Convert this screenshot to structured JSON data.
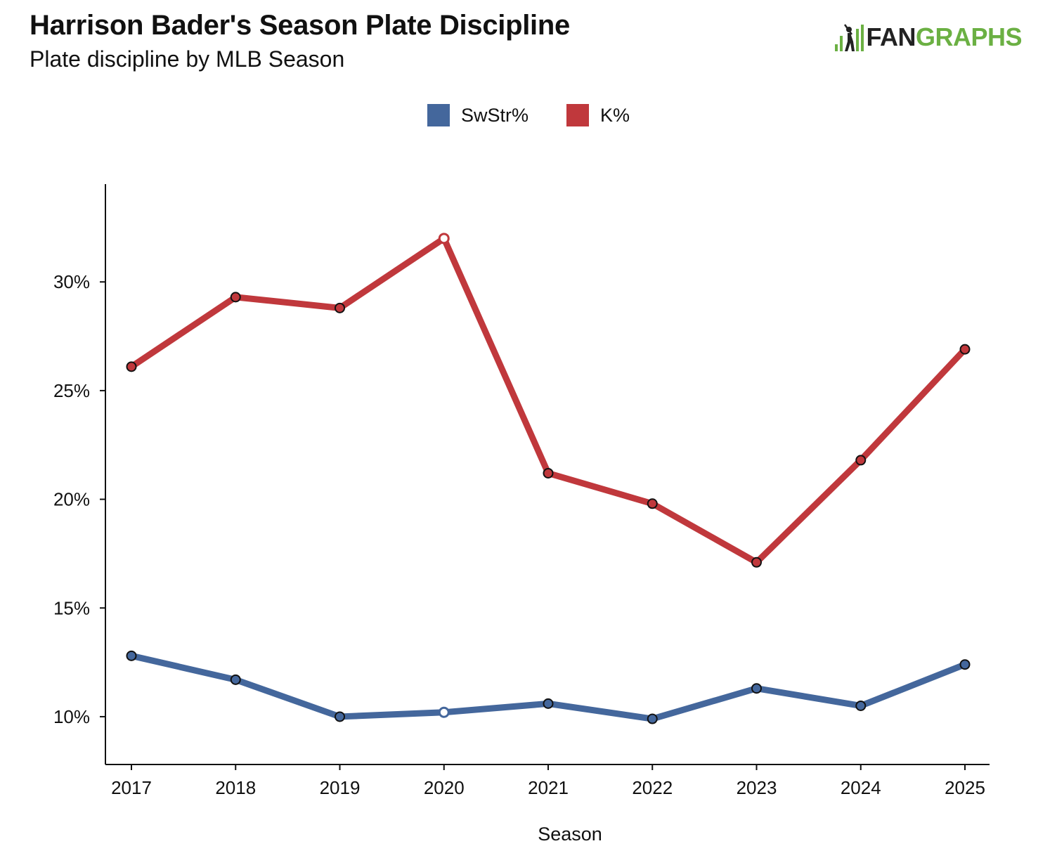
{
  "header": {
    "title": "Harrison Bader's Season Plate Discipline",
    "subtitle": "Plate discipline by MLB Season"
  },
  "logo": {
    "text_dark": "FAN",
    "text_green": "GRAPHS",
    "icon": "batter-icon"
  },
  "colors": {
    "swstr": "#44679c",
    "k": "#c0383c",
    "text": "#111111",
    "logo_green": "#6bb043"
  },
  "chart_data": {
    "type": "line",
    "title": "Harrison Bader's Season Plate Discipline",
    "subtitle": "Plate discipline by MLB Season",
    "xlabel": "Season",
    "ylabel": "",
    "categories": [
      "2017",
      "2018",
      "2019",
      "2020",
      "2021",
      "2022",
      "2023",
      "2024",
      "2025"
    ],
    "series": [
      {
        "name": "SwStr%",
        "color": "#44679c",
        "values": [
          12.8,
          11.7,
          10.0,
          10.2,
          10.6,
          9.9,
          11.3,
          10.5,
          12.4
        ],
        "open_points": [
          "2020"
        ]
      },
      {
        "name": "K%",
        "color": "#c0383c",
        "values": [
          26.1,
          29.3,
          28.8,
          32.0,
          21.2,
          19.8,
          17.1,
          21.8,
          26.9
        ],
        "open_points": [
          "2020"
        ]
      }
    ],
    "ylim": [
      7.8,
      34.5
    ],
    "yticks": [
      10,
      15,
      20,
      25,
      30
    ],
    "ytick_labels": [
      "10%",
      "15%",
      "20%",
      "25%",
      "30%"
    ],
    "grid": false,
    "legend": "top-center"
  }
}
